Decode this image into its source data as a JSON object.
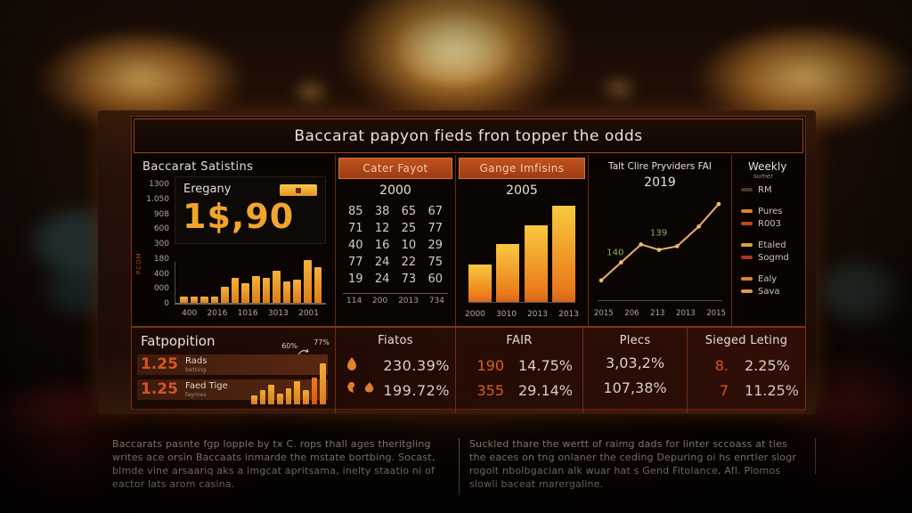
{
  "title": "Baccarat papyon fieds fron topper the odds",
  "stats_panel": {
    "header": "Baccarat Satistins",
    "card_label": "Eregany",
    "card_value": "1$,90",
    "side_label": "PCOM"
  },
  "chart_data": [
    {
      "id": "stats_bars",
      "type": "bar",
      "title": "Baccarat Satistins",
      "y_ticks": [
        "1300",
        "1.050",
        "908",
        "600",
        "300",
        "180",
        "400",
        "000",
        "0"
      ],
      "x_ticks": [
        "400",
        "2016",
        "1016",
        "3013",
        "2001"
      ],
      "values": [
        7,
        7,
        7,
        7,
        18,
        28,
        22,
        30,
        28,
        36,
        24,
        26,
        48,
        40
      ],
      "ylim": [
        0,
        1300
      ],
      "grid": false
    },
    {
      "id": "payout_table",
      "type": "table",
      "title": "Cater Fayot",
      "subtitle": "2000",
      "rows": [
        [
          "85",
          "38",
          "65",
          "67"
        ],
        [
          "71",
          "12",
          "25",
          "77"
        ],
        [
          "40",
          "16",
          "10",
          "29"
        ],
        [
          "77",
          "24",
          "22",
          "75"
        ],
        [
          "19",
          "24",
          "73",
          "60"
        ]
      ],
      "footer": [
        "114",
        "200",
        "2013",
        "734"
      ]
    },
    {
      "id": "gains_bars",
      "type": "bar",
      "title": "Gange Imfisins",
      "subtitle": "2005",
      "categories": [
        "2000",
        "3010",
        "2013",
        "2013"
      ],
      "values": [
        42,
        65,
        86,
        108
      ]
    },
    {
      "id": "providers_line",
      "type": "line",
      "title": "Talt Clire Pryviders FAI",
      "subtitle": "2019",
      "x_ticks": [
        "2015",
        "206",
        "213",
        "2013",
        "2015"
      ],
      "points": [
        [
          4,
          90
        ],
        [
          26,
          70
        ],
        [
          48,
          50
        ],
        [
          68,
          56
        ],
        [
          88,
          52
        ],
        [
          112,
          30
        ],
        [
          134,
          5
        ]
      ],
      "annotations": [
        {
          "text": "140",
          "x": 10,
          "y": 62
        },
        {
          "text": "139",
          "x": 58,
          "y": 40
        }
      ],
      "line_color": "#e8b06a",
      "annotation_color": "#8faa58"
    },
    {
      "id": "fatpop_bars",
      "type": "bar",
      "values": [
        10,
        16,
        22,
        12,
        18,
        26,
        16,
        30,
        46
      ],
      "labels": [
        "60%",
        "77%"
      ]
    }
  ],
  "legend": {
    "title": "Weekly",
    "subtitle": "sumer",
    "groups": [
      [
        {
          "label": "RM",
          "color": "#4a3828"
        }
      ],
      [
        {
          "label": "Pures",
          "color": "#e0812e"
        },
        {
          "label": "R003",
          "color": "#c2491c"
        }
      ],
      [
        {
          "label": "Etaled",
          "color": "#d9a43a"
        },
        {
          "label": "Sogmd",
          "color": "#b23522"
        }
      ],
      [
        {
          "label": "Ealy",
          "color": "#e0812e"
        },
        {
          "label": "Sava",
          "color": "#e29a4a"
        }
      ]
    ]
  },
  "bottom": {
    "fatpopition": {
      "header": "Fatpopition",
      "rows": [
        {
          "value": "1.25",
          "label": "Rads",
          "sub": "betting"
        },
        {
          "value": "1.25",
          "label": "Faed Tige",
          "sub": "faymes"
        }
      ]
    },
    "fiatos": {
      "header": "Fiatos",
      "rows": [
        {
          "icons": [
            "chip-drop-icon",
            "crescent-icon"
          ],
          "value": "230.39%"
        },
        {
          "icons": [
            "bird-icon",
            "flame-icon"
          ],
          "value": "199.72%"
        }
      ]
    },
    "fair": {
      "header": "FAIR",
      "rows": [
        {
          "num": "190",
          "pct": "14.75%"
        },
        {
          "num": "355",
          "pct": "29.14%"
        }
      ]
    },
    "plecs": {
      "header": "Plecs",
      "rows": [
        {
          "pct": "3,03,2%"
        },
        {
          "pct": "107,38%"
        }
      ]
    },
    "sieged": {
      "header": "Sieged Leting",
      "rows": [
        {
          "num": "8.",
          "pct": "2.25%"
        },
        {
          "num": "7",
          "pct": "11.25%"
        }
      ]
    }
  },
  "captions": {
    "left": "Baccarats pasnte fgp lopple by tx C. rops thall ages theritgling writes ace orsin Baccaats inmarde the mstate bortbing. Socast, blmde vine arsaariq aks a imgcat apritsama, inelty staatio ni of eactor lats arom casina.",
    "right": "Suckled thare the wertt of raimg dads for linter sccoass at ties the eaces on tng onlaner the ceding Depuring oi hs enrtler slogr rogolt nbolbgacian alk wuar hat s Gend Fitolance, Afl. Plomos slowli baceat marergaline."
  },
  "colors": {
    "accent": "#e0812e",
    "banner": "#b5481c",
    "value_amber": "#f2a52c",
    "stat_orange": "#e05620"
  }
}
